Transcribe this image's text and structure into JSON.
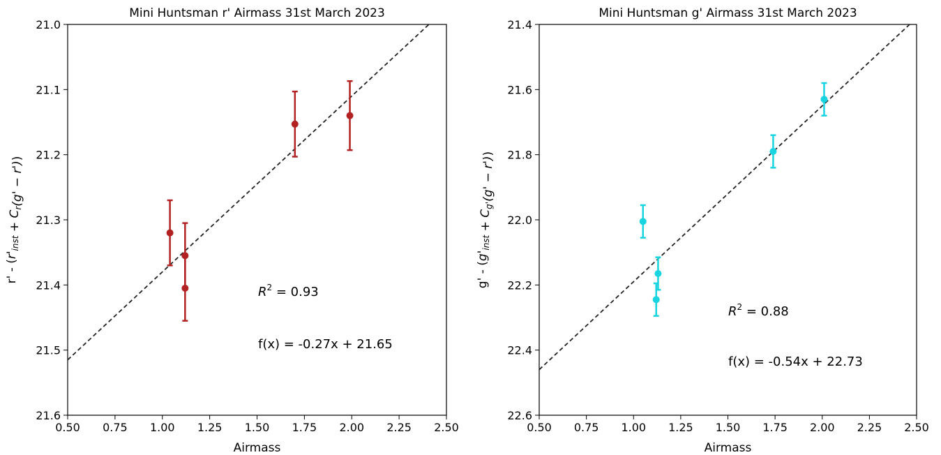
{
  "chart_data": [
    {
      "type": "scatter",
      "title": "Mini Huntsman r' Airmass 31st March 2023",
      "xlabel": "Airmass",
      "ylabel": {
        "prefix": "r' - (",
        "a": "r'",
        "a_sub": "inst",
        "b": "C",
        "b_sub": "r",
        "c": "(g' − r')",
        "suffix": ")"
      },
      "xlim": [
        0.5,
        2.5
      ],
      "ylim": [
        21.6,
        21.0
      ],
      "y_inverted": true,
      "x_ticks": [
        "0.50",
        "0.75",
        "1.00",
        "1.25",
        "1.50",
        "1.75",
        "2.00",
        "2.25",
        "2.50"
      ],
      "y_ticks": [
        "21.0",
        "21.1",
        "21.2",
        "21.3",
        "21.4",
        "21.5",
        "21.6"
      ],
      "color": "#b22222",
      "points": [
        {
          "x": 1.04,
          "y": 21.32,
          "err": 0.05
        },
        {
          "x": 1.12,
          "y": 21.355,
          "err": 0.05
        },
        {
          "x": 1.12,
          "y": 21.405,
          "err": 0.05
        },
        {
          "x": 1.7,
          "y": 21.153,
          "err": 0.05
        },
        {
          "x": 1.99,
          "y": 21.14,
          "err": 0.053
        }
      ],
      "fit": {
        "slope": -0.27,
        "intercept": 21.65
      },
      "r2_label": "= 0.93",
      "fit_label": "f(x) = -0.27x + 21.65",
      "grid": false
    },
    {
      "type": "scatter",
      "title": "Mini Huntsman g' Airmass 31st March 2023",
      "xlabel": "Airmass",
      "ylabel": {
        "prefix": "g' - (",
        "a": "g'",
        "a_sub": "inst",
        "b": "C",
        "b_sub": "g'",
        "c": "(g' − r')",
        "suffix": ")"
      },
      "xlim": [
        0.5,
        2.5
      ],
      "ylim": [
        22.6,
        21.4
      ],
      "y_inverted": true,
      "x_ticks": [
        "0.50",
        "0.75",
        "1.00",
        "1.25",
        "1.50",
        "1.75",
        "2.00",
        "2.25",
        "2.50"
      ],
      "y_ticks": [
        "21.4",
        "21.6",
        "21.8",
        "22.0",
        "22.2",
        "22.4",
        "22.6"
      ],
      "color": "#17d4e0",
      "points": [
        {
          "x": 1.05,
          "y": 22.005,
          "err": 0.05
        },
        {
          "x": 1.13,
          "y": 22.165,
          "err": 0.05
        },
        {
          "x": 1.12,
          "y": 22.245,
          "err": 0.05
        },
        {
          "x": 1.74,
          "y": 21.79,
          "err": 0.05
        },
        {
          "x": 2.01,
          "y": 21.63,
          "err": 0.05
        }
      ],
      "fit": {
        "slope": -0.54,
        "intercept": 22.73
      },
      "r2_label": "= 0.88",
      "fit_label": "f(x) = -0.54x + 22.73",
      "grid": false
    }
  ]
}
